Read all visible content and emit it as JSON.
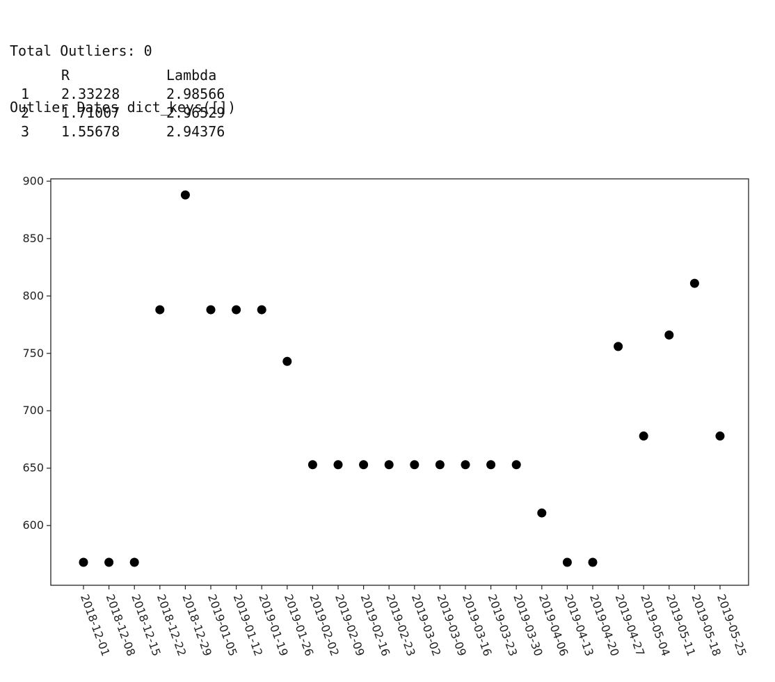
{
  "output": {
    "lines": [
      "Total Outliers: 0",
      "Outlier Dates dict_keys([])"
    ]
  },
  "stats_table": {
    "headers": [
      "",
      "R",
      "Lambda"
    ],
    "rows": [
      [
        "1",
        "2.33228",
        "2.98566"
      ],
      [
        "2",
        "1.71007",
        "2.96529"
      ],
      [
        "3",
        "1.55678",
        "2.94376"
      ]
    ]
  },
  "chart_data": {
    "type": "scatter",
    "title": "",
    "xlabel": "",
    "ylabel": "",
    "x": [
      "2018-12-01",
      "2018-12-08",
      "2018-12-15",
      "2018-12-22",
      "2018-12-29",
      "2019-01-05",
      "2019-01-12",
      "2019-01-19",
      "2019-01-26",
      "2019-02-02",
      "2019-02-09",
      "2019-02-16",
      "2019-02-23",
      "2019-03-02",
      "2019-03-09",
      "2019-03-16",
      "2019-03-23",
      "2019-03-30",
      "2019-04-06",
      "2019-04-13",
      "2019-04-20",
      "2019-04-27",
      "2019-05-04",
      "2019-05-11",
      "2019-05-18",
      "2019-05-25"
    ],
    "y": [
      568,
      568,
      568,
      788,
      888,
      788,
      788,
      788,
      743,
      653,
      653,
      653,
      653,
      653,
      653,
      653,
      653,
      653,
      611,
      568,
      568,
      756,
      678,
      766,
      811,
      678
    ],
    "yticks": [
      600,
      650,
      700,
      750,
      800,
      850,
      900
    ],
    "ylim": [
      548,
      902
    ],
    "marker_color": "#000000",
    "grid": false,
    "xtick_rotation": -70
  }
}
